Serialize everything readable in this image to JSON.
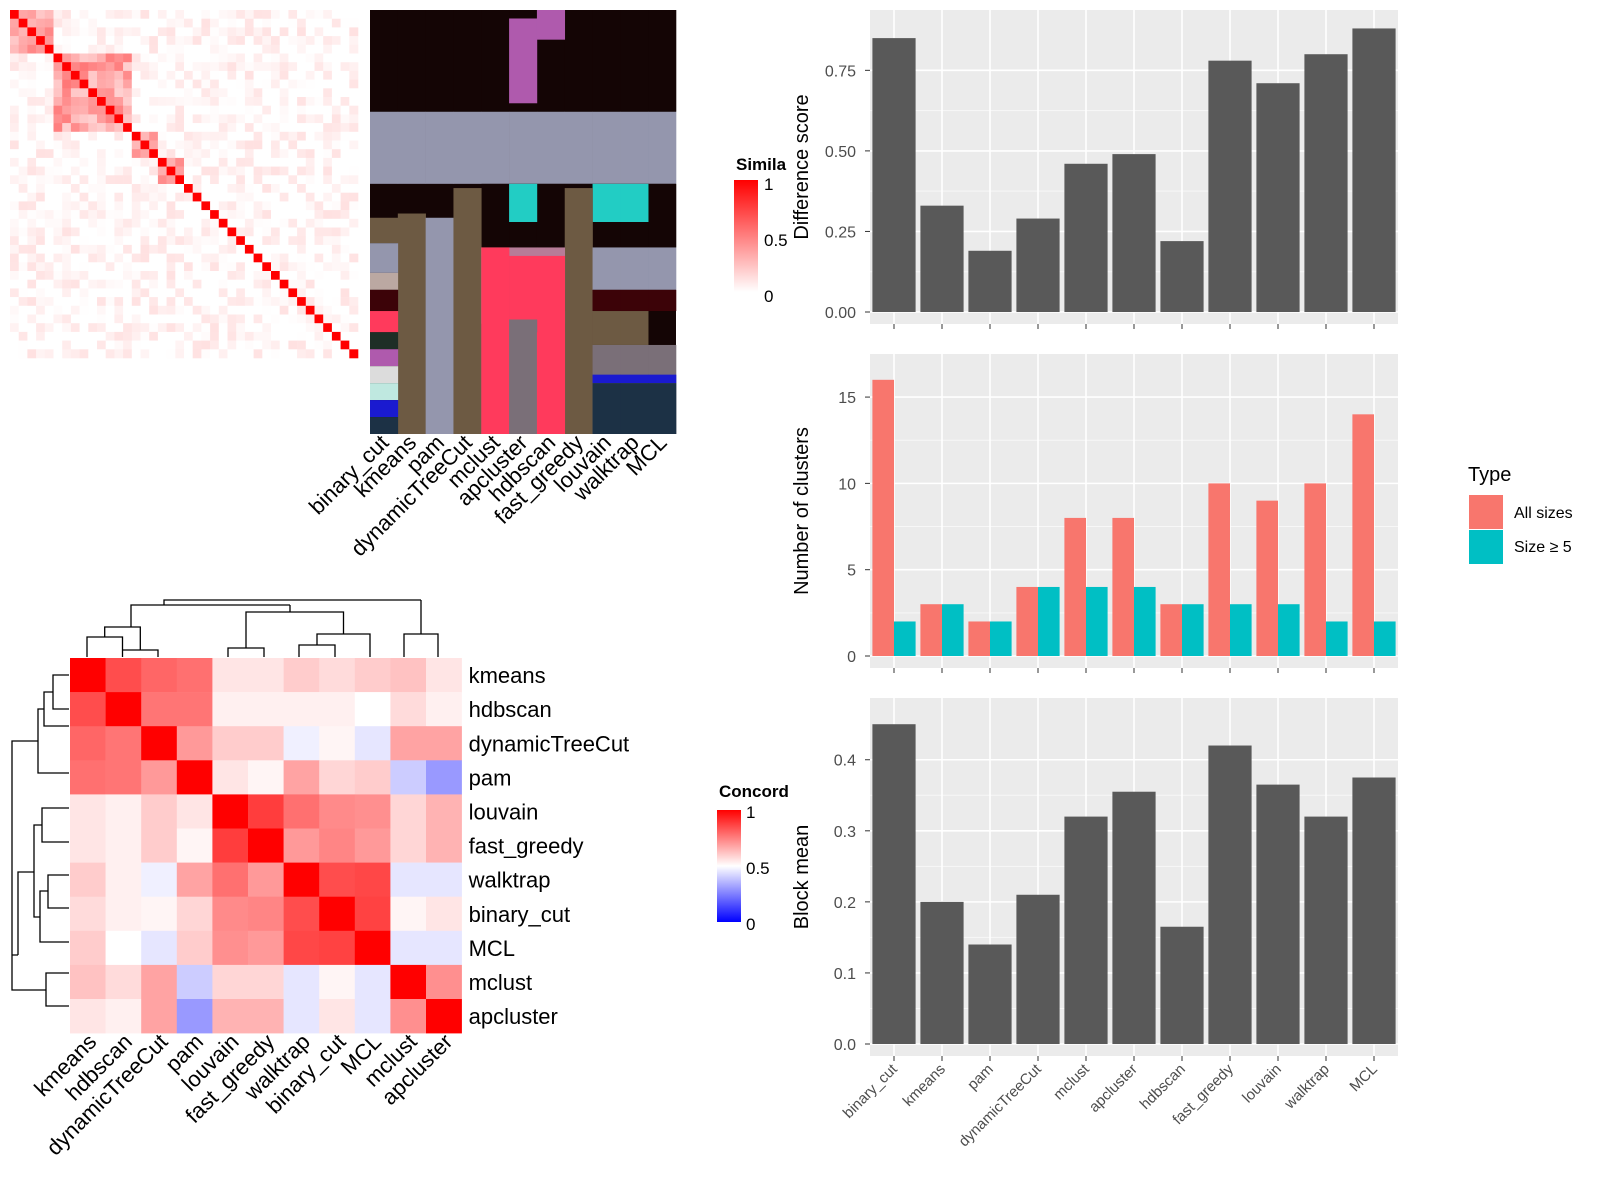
{
  "methods_order": [
    "binary_cut",
    "kmeans",
    "pam",
    "dynamicTreeCut",
    "mclust",
    "apcluster",
    "hdbscan",
    "fast_greedy",
    "louvain",
    "walktrap",
    "MCL"
  ],
  "similarity_heatmap": {
    "legend_title": "Simila",
    "legend_ticks": [
      "1",
      "0.5",
      "0"
    ],
    "colors": {
      "high": "#ff0000",
      "low": "#ffffff"
    }
  },
  "concordance_heatmap": {
    "legend_title": "Concord",
    "legend_ticks": [
      "1",
      "0.5",
      "0"
    ],
    "colors": {
      "high": "#ff0000",
      "mid": "#ffffff",
      "low": "#0000ff"
    },
    "order": [
      "kmeans",
      "hdbscan",
      "dynamicTreeCut",
      "pam",
      "louvain",
      "fast_greedy",
      "walktrap",
      "binary_cut",
      "MCL",
      "mclust",
      "apcluster"
    ],
    "matrix": [
      [
        1.0,
        0.85,
        0.8,
        0.78,
        0.55,
        0.55,
        0.6,
        0.57,
        0.6,
        0.62,
        0.55
      ],
      [
        0.85,
        1.0,
        0.77,
        0.77,
        0.53,
        0.53,
        0.53,
        0.53,
        0.5,
        0.57,
        0.53
      ],
      [
        0.8,
        0.77,
        1.0,
        0.7,
        0.6,
        0.6,
        0.47,
        0.52,
        0.45,
        0.68,
        0.68
      ],
      [
        0.78,
        0.77,
        0.7,
        1.0,
        0.55,
        0.52,
        0.68,
        0.58,
        0.6,
        0.4,
        0.3
      ],
      [
        0.55,
        0.53,
        0.6,
        0.55,
        1.0,
        0.88,
        0.78,
        0.73,
        0.72,
        0.58,
        0.65
      ],
      [
        0.55,
        0.53,
        0.6,
        0.52,
        0.88,
        1.0,
        0.7,
        0.74,
        0.7,
        0.58,
        0.65
      ],
      [
        0.6,
        0.53,
        0.47,
        0.68,
        0.78,
        0.7,
        1.0,
        0.85,
        0.86,
        0.45,
        0.45
      ],
      [
        0.57,
        0.53,
        0.52,
        0.58,
        0.73,
        0.74,
        0.85,
        1.0,
        0.87,
        0.52,
        0.55
      ],
      [
        0.6,
        0.5,
        0.45,
        0.6,
        0.72,
        0.7,
        0.86,
        0.87,
        1.0,
        0.45,
        0.45
      ],
      [
        0.62,
        0.57,
        0.68,
        0.4,
        0.58,
        0.58,
        0.45,
        0.52,
        0.45,
        1.0,
        0.72
      ],
      [
        0.55,
        0.53,
        0.68,
        0.3,
        0.65,
        0.65,
        0.45,
        0.55,
        0.45,
        0.72,
        1.0
      ]
    ]
  },
  "chart_data": [
    {
      "type": "bar",
      "categories": [
        "binary_cut",
        "kmeans",
        "pam",
        "dynamicTreeCut",
        "mclust",
        "apcluster",
        "hdbscan",
        "fast_greedy",
        "louvain",
        "walktrap",
        "MCL"
      ],
      "values": [
        0.85,
        0.33,
        0.19,
        0.29,
        0.46,
        0.49,
        0.22,
        0.78,
        0.71,
        0.8,
        0.88
      ],
      "ylabel": "Difference score",
      "ylim": [
        0,
        0.9
      ],
      "yticks": [
        "0.00",
        "0.25",
        "0.50",
        "0.75"
      ],
      "grid": true,
      "color": "#595959"
    },
    {
      "type": "bar",
      "categories": [
        "binary_cut",
        "kmeans",
        "pam",
        "dynamicTreeCut",
        "mclust",
        "apcluster",
        "hdbscan",
        "fast_greedy",
        "louvain",
        "walktrap",
        "MCL"
      ],
      "series": [
        {
          "name": "All sizes",
          "values": [
            16,
            3,
            2,
            4,
            8,
            8,
            3,
            10,
            9,
            10,
            14
          ],
          "color": "#f8766d"
        },
        {
          "name": "Size ≥ 5",
          "values": [
            2,
            3,
            2,
            4,
            4,
            4,
            3,
            3,
            3,
            2,
            2
          ],
          "color": "#00bfc4"
        }
      ],
      "ylabel": "Number of clusters",
      "ylim": [
        0,
        16.8
      ],
      "yticks": [
        "0",
        "5",
        "10",
        "15"
      ],
      "legend_title": "Type",
      "legend_position": "right",
      "grid": true
    },
    {
      "type": "bar",
      "categories": [
        "binary_cut",
        "kmeans",
        "pam",
        "dynamicTreeCut",
        "mclust",
        "apcluster",
        "hdbscan",
        "fast_greedy",
        "louvain",
        "walktrap",
        "MCL"
      ],
      "values": [
        0.45,
        0.2,
        0.14,
        0.21,
        0.32,
        0.355,
        0.165,
        0.42,
        0.365,
        0.32,
        0.375
      ],
      "ylabel": "Block mean",
      "ylim": [
        0,
        0.47
      ],
      "yticks": [
        "0.0",
        "0.1",
        "0.2",
        "0.3",
        "0.4"
      ],
      "grid": true,
      "color": "#595959"
    }
  ]
}
